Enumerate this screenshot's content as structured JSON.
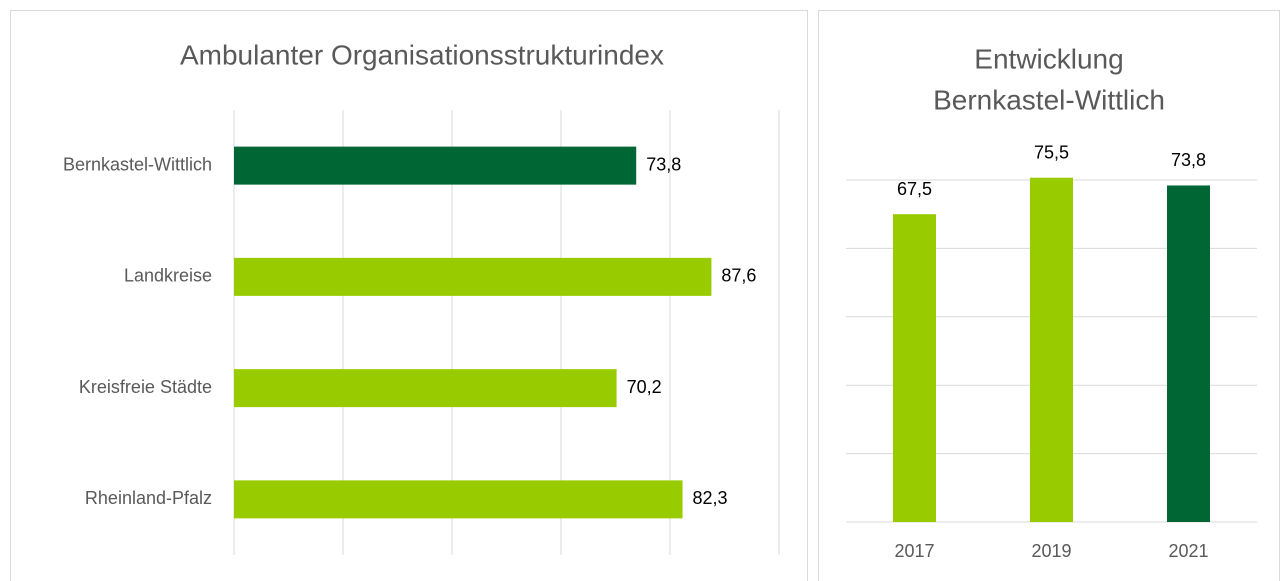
{
  "chart_data": [
    {
      "type": "hbar",
      "title": "Ambulanter Organisationsstrukturindex",
      "categories": [
        "Bernkastel-Wittlich",
        "Landkreise",
        "Kreisfreie Städte",
        "Rheinland-Pfalz"
      ],
      "values": [
        73.8,
        87.6,
        70.2,
        82.3
      ],
      "value_labels": [
        "73,8",
        "87,6",
        "70,2",
        "82,3"
      ],
      "colors": [
        "#006633",
        "#99cc00",
        "#99cc00",
        "#99cc00"
      ],
      "xlim": [
        0,
        100
      ],
      "xticks": [
        0,
        20,
        40,
        60,
        80,
        100
      ],
      "grid": true
    },
    {
      "type": "bar",
      "title": [
        "Entwicklung",
        "Bernkastel-Wittlich"
      ],
      "categories": [
        "2017",
        "2019",
        "2021"
      ],
      "values": [
        67.5,
        75.5,
        73.8
      ],
      "value_labels": [
        "67,5",
        "75,5",
        "73,8"
      ],
      "colors": [
        "#99cc00",
        "#99cc00",
        "#006633"
      ],
      "ylim": [
        0,
        75
      ],
      "yticks": [
        0,
        15,
        30,
        45,
        60,
        75
      ],
      "grid": true
    }
  ]
}
